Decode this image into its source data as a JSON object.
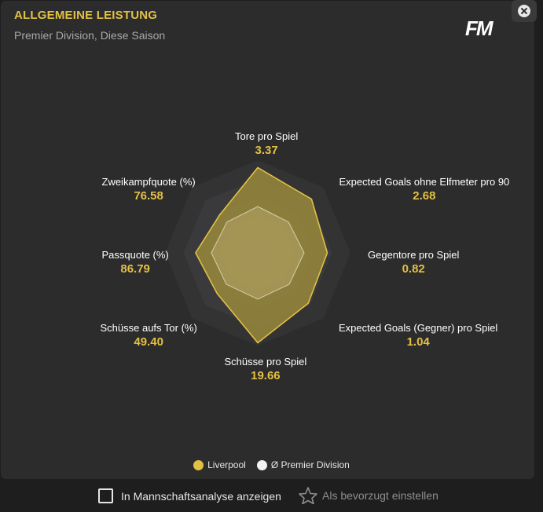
{
  "header": {
    "title": "ALLGEMEINE LEISTUNG",
    "subtitle": "Premier Division, Diese Saison",
    "logo": "FM"
  },
  "close_icon": "close-icon",
  "colors": {
    "accent": "#e2c044",
    "liverpool_fill": "#9c8b3a",
    "league_fill": "#b8a86a"
  },
  "chart_data": {
    "type": "radar",
    "axes": [
      {
        "name": "Tore pro Spiel",
        "value": "3.37"
      },
      {
        "name": "Expected Goals ohne Elfmeter pro 90",
        "value": "2.68"
      },
      {
        "name": "Gegentore pro Spiel",
        "value": "0.82"
      },
      {
        "name": "Expected Goals (Gegner) pro Spiel",
        "value": "1.04"
      },
      {
        "name": "Schüsse pro Spiel",
        "value": "19.66"
      },
      {
        "name": "Schüsse aufs Tor (%)",
        "value": "49.40"
      },
      {
        "name": "Passquote (%)",
        "value": "86.79"
      },
      {
        "name": "Zweikampfquote (%)",
        "value": "76.58"
      }
    ],
    "series": [
      {
        "name": "Liverpool",
        "normalized": [
          0.92,
          0.82,
          0.75,
          0.77,
          0.97,
          0.62,
          0.67,
          0.58
        ]
      },
      {
        "name": "Ø Premier Division",
        "normalized": [
          0.5,
          0.47,
          0.5,
          0.48,
          0.5,
          0.48,
          0.5,
          0.47
        ]
      }
    ],
    "rings": 5,
    "legend_position": "bottom"
  },
  "legend": [
    {
      "label": "Liverpool",
      "color": "#e2c044"
    },
    {
      "label": "Ø Premier Division",
      "color": "#f2f2f2"
    }
  ],
  "footer": {
    "checkbox_label": "In Mannschaftsanalyse anzeigen",
    "favorite_label": "Als bevorzugt einstellen",
    "favorite_icon": "star-icon"
  }
}
